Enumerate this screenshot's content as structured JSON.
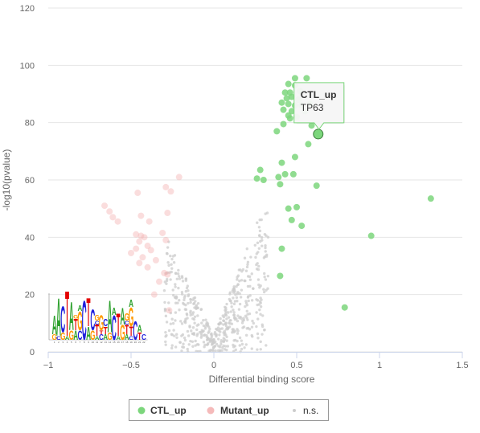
{
  "chart_data": {
    "type": "scatter",
    "title": "",
    "xlabel": "Differential binding score",
    "ylabel": "-log10(pvalue)",
    "xlim": [
      -1,
      1.5
    ],
    "ylim": [
      0,
      120
    ],
    "x_ticks": [
      "−1",
      "−0.5",
      "0",
      "0.5",
      "1",
      "1.5"
    ],
    "x_tick_values": [
      -1,
      -0.5,
      0,
      0.5,
      1,
      1.5
    ],
    "y_ticks": [
      "0",
      "20",
      "40",
      "60",
      "80",
      "100",
      "120"
    ],
    "y_tick_values": [
      0,
      20,
      40,
      60,
      80,
      100,
      120
    ],
    "grid": "horizontal",
    "legend_position": "bottom-center",
    "colors": {
      "CTL_up": "#7cd67c",
      "Mutant_up": "#f4b3b3",
      "ns": "#cccccc"
    },
    "legend": [
      {
        "key": "CTL_up",
        "label": "CTL_up",
        "marker": "circle-large"
      },
      {
        "key": "Mutant_up",
        "label": "Mutant_up",
        "marker": "circle-large"
      },
      {
        "key": "ns",
        "label": "n.s.",
        "marker": "circle-small"
      }
    ],
    "tooltip": {
      "series": "CTL_up",
      "label": "TP63",
      "x": 0.63,
      "y": 76
    },
    "series": [
      {
        "key": "CTL_up",
        "name": "CTL_up",
        "points": [
          [
            0.49,
            95.5
          ],
          [
            0.56,
            95.5
          ],
          [
            0.45,
            93.5
          ],
          [
            0.49,
            93.0
          ],
          [
            0.43,
            90.5
          ],
          [
            0.46,
            90.5
          ],
          [
            0.52,
            91.0
          ],
          [
            0.44,
            88.5
          ],
          [
            0.47,
            89.0
          ],
          [
            0.51,
            88.0
          ],
          [
            0.41,
            87.0
          ],
          [
            0.45,
            86.5
          ],
          [
            0.49,
            86.0
          ],
          [
            0.53,
            86.0
          ],
          [
            0.58,
            86.5
          ],
          [
            0.42,
            84.5
          ],
          [
            0.47,
            84.0
          ],
          [
            0.55,
            84.0
          ],
          [
            0.45,
            82.5
          ],
          [
            0.5,
            82.0
          ],
          [
            0.46,
            81.5
          ],
          [
            0.42,
            79.5
          ],
          [
            0.38,
            77.0
          ],
          [
            0.59,
            79.0
          ],
          [
            0.63,
            76.0
          ],
          [
            0.57,
            72.5
          ],
          [
            0.49,
            68.0
          ],
          [
            0.41,
            66.0
          ],
          [
            0.28,
            63.5
          ],
          [
            0.26,
            60.5
          ],
          [
            0.3,
            60.0
          ],
          [
            0.39,
            61.0
          ],
          [
            0.43,
            62.0
          ],
          [
            0.48,
            62.0
          ],
          [
            0.4,
            58.5
          ],
          [
            0.62,
            58.0
          ],
          [
            0.45,
            50.0
          ],
          [
            0.5,
            50.5
          ],
          [
            0.47,
            46.0
          ],
          [
            0.53,
            44.0
          ],
          [
            0.41,
            36.0
          ],
          [
            0.4,
            26.5
          ],
          [
            0.79,
            15.5
          ],
          [
            0.95,
            40.5
          ],
          [
            1.31,
            53.5
          ]
        ]
      },
      {
        "key": "Mutant_up",
        "name": "Mutant_up",
        "points": [
          [
            -0.66,
            51.0
          ],
          [
            -0.63,
            49.0
          ],
          [
            -0.61,
            47.0
          ],
          [
            -0.58,
            45.5
          ],
          [
            -0.46,
            55.5
          ],
          [
            -0.44,
            47.5
          ],
          [
            -0.39,
            45.5
          ],
          [
            -0.21,
            61.0
          ],
          [
            -0.29,
            57.5
          ],
          [
            -0.26,
            56.0
          ],
          [
            -0.28,
            48.5
          ],
          [
            -0.47,
            41.0
          ],
          [
            -0.44,
            40.5
          ],
          [
            -0.42,
            40.0
          ],
          [
            -0.45,
            38.5
          ],
          [
            -0.4,
            37.0
          ],
          [
            -0.47,
            36.0
          ],
          [
            -0.5,
            34.5
          ],
          [
            -0.43,
            33.0
          ],
          [
            -0.38,
            35.5
          ],
          [
            -0.35,
            32.0
          ],
          [
            -0.45,
            31.0
          ],
          [
            -0.4,
            29.5
          ],
          [
            -0.3,
            27.5
          ],
          [
            -0.28,
            27.0
          ],
          [
            -0.33,
            24.5
          ],
          [
            -0.36,
            20.0
          ],
          [
            -0.27,
            14.5
          ],
          [
            -0.31,
            41.5
          ],
          [
            -0.29,
            39.0
          ]
        ]
      },
      {
        "key": "ns",
        "name": "n.s.",
        "generated": true,
        "count": 520,
        "x_range": [
          -0.3,
          0.33
        ],
        "y_max": 50
      }
    ]
  },
  "motif_logo": {
    "columns": [
      {
        "letters": [
          [
            "G",
            0.3
          ],
          [
            "A",
            1.0
          ]
        ]
      },
      {
        "letters": [
          [
            "C",
            0.2
          ],
          [
            "A",
            2.0
          ]
        ]
      },
      {
        "letters": [
          [
            "G",
            0.4
          ],
          [
            "C",
            1.4
          ]
        ]
      },
      {
        "letters": [
          [
            "A",
            0.2
          ],
          [
            "T",
            2.4
          ]
        ]
      },
      {
        "letters": [
          [
            "G",
            0.5
          ],
          [
            "A",
            1.5
          ]
        ]
      },
      {
        "letters": [
          [
            "A",
            0.5
          ],
          [
            "T",
            0.6
          ],
          [
            "G",
            0.2
          ]
        ]
      },
      {
        "letters": [
          [
            "C",
            0.5
          ],
          [
            "G",
            1.0
          ],
          [
            "A",
            0.3
          ]
        ]
      },
      {
        "letters": [
          [
            "C",
            2.1
          ]
        ]
      },
      {
        "letters": [
          [
            "A",
            0.7
          ],
          [
            "T",
            1.5
          ]
        ]
      },
      {
        "letters": [
          [
            "G",
            0.5
          ],
          [
            "C",
            1.1
          ]
        ]
      },
      {
        "letters": [
          [
            "A",
            0.2
          ],
          [
            "T",
            0.6
          ],
          [
            "C",
            0.2
          ],
          [
            "G",
            0.3
          ]
        ]
      },
      {
        "letters": [
          [
            "C",
            0.3
          ],
          [
            "T",
            0.2
          ],
          [
            "G",
            0.8
          ]
        ]
      },
      {
        "letters": [
          [
            "A",
            0.3
          ],
          [
            "T",
            0.4
          ],
          [
            "C",
            0.4
          ]
        ]
      },
      {
        "letters": [
          [
            "G",
            0.4
          ],
          [
            "A",
            1.7
          ]
        ]
      },
      {
        "letters": [
          [
            "C",
            1.3
          ],
          [
            "A",
            0.4
          ]
        ]
      },
      {
        "letters": [
          [
            "A",
            0.2
          ],
          [
            "T",
            1.2
          ]
        ]
      },
      {
        "letters": [
          [
            "G",
            0.8
          ],
          [
            "A",
            0.9
          ]
        ]
      },
      {
        "letters": [
          [
            "A",
            0.3
          ],
          [
            "T",
            0.5
          ],
          [
            "C",
            0.2
          ],
          [
            "G",
            0.4
          ]
        ]
      },
      {
        "letters": [
          [
            "C",
            0.2
          ],
          [
            "T",
            0.5
          ],
          [
            "G",
            1.0
          ],
          [
            "A",
            0.4
          ]
        ]
      },
      {
        "letters": [
          [
            "C",
            1.0
          ]
        ]
      },
      {
        "letters": [
          [
            "T",
            0.4
          ],
          [
            "A",
            0.4
          ]
        ]
      },
      {
        "letters": [
          [
            "C",
            0.3
          ]
        ]
      }
    ],
    "letter_colors": {
      "A": "#2ca02c",
      "C": "#1f1fdd",
      "G": "#ff9900",
      "T": "#e30000"
    }
  }
}
